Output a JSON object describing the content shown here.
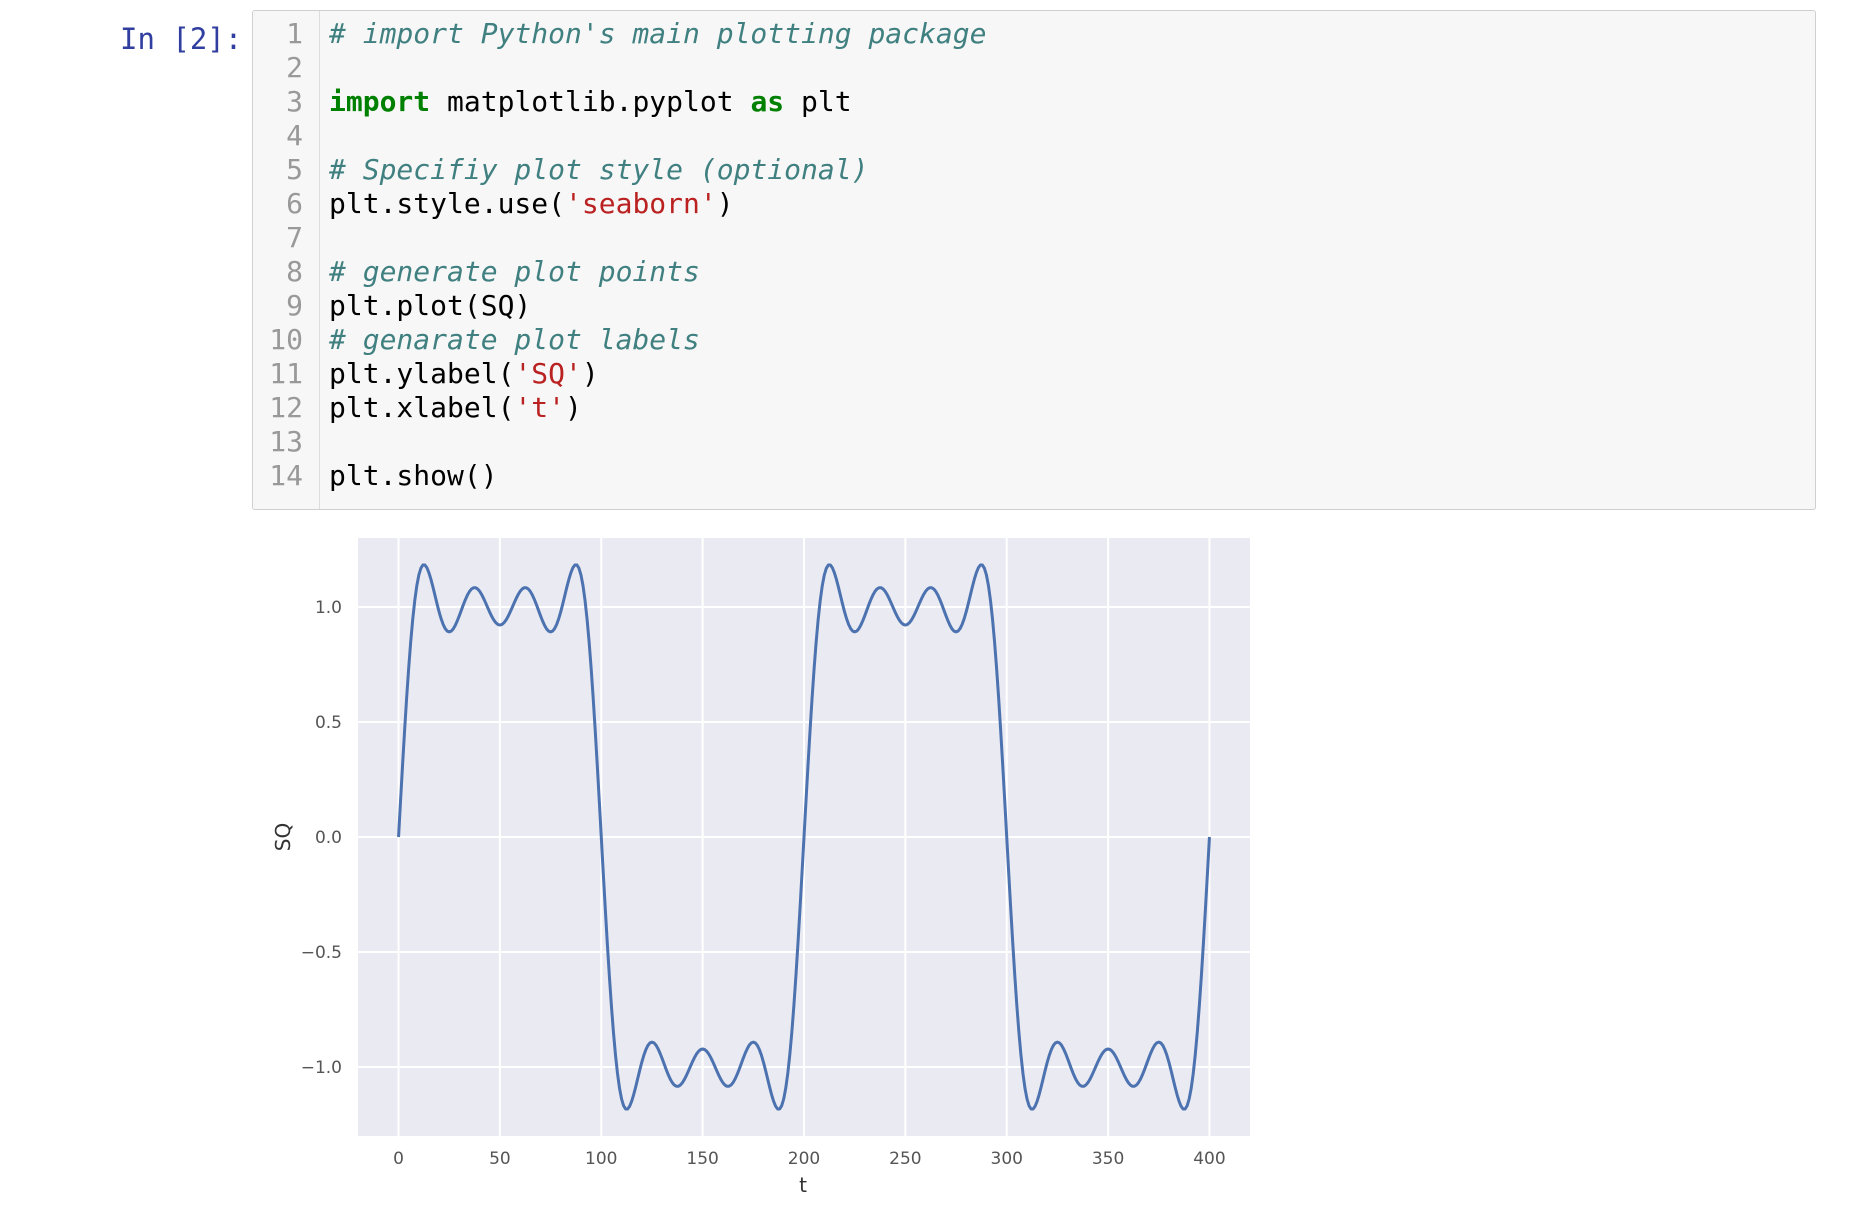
{
  "cell": {
    "prompt": "In [2]:",
    "lines": [
      {
        "n": "1",
        "tokens": [
          {
            "t": "comment",
            "v": "# import Python's main plotting package"
          }
        ]
      },
      {
        "n": "2",
        "tokens": []
      },
      {
        "n": "3",
        "tokens": [
          {
            "t": "keyword",
            "v": "import"
          },
          {
            "t": "plain",
            "v": " matplotlib.pyplot "
          },
          {
            "t": "keyword",
            "v": "as"
          },
          {
            "t": "plain",
            "v": " plt"
          }
        ]
      },
      {
        "n": "4",
        "tokens": []
      },
      {
        "n": "5",
        "tokens": [
          {
            "t": "comment",
            "v": "# Specifiy plot style (optional)"
          }
        ]
      },
      {
        "n": "6",
        "tokens": [
          {
            "t": "plain",
            "v": "plt.style.use("
          },
          {
            "t": "string",
            "v": "'seaborn'"
          },
          {
            "t": "plain",
            "v": ")"
          }
        ]
      },
      {
        "n": "7",
        "tokens": []
      },
      {
        "n": "8",
        "tokens": [
          {
            "t": "comment",
            "v": "# generate plot points"
          }
        ]
      },
      {
        "n": "9",
        "tokens": [
          {
            "t": "plain",
            "v": "plt.plot(SQ)"
          }
        ]
      },
      {
        "n": "10",
        "tokens": [
          {
            "t": "comment",
            "v": "# genarate plot labels"
          }
        ]
      },
      {
        "n": "11",
        "tokens": [
          {
            "t": "plain",
            "v": "plt.ylabel("
          },
          {
            "t": "string",
            "v": "'SQ'"
          },
          {
            "t": "plain",
            "v": ")"
          }
        ]
      },
      {
        "n": "12",
        "tokens": [
          {
            "t": "plain",
            "v": "plt.xlabel("
          },
          {
            "t": "string",
            "v": "'t'"
          },
          {
            "t": "plain",
            "v": ")"
          }
        ]
      },
      {
        "n": "13",
        "tokens": []
      },
      {
        "n": "14",
        "tokens": [
          {
            "t": "plain",
            "v": "plt.show()"
          }
        ]
      }
    ]
  },
  "chart_data": {
    "type": "line",
    "title": "",
    "xlabel": "t",
    "ylabel": "SQ",
    "xlim": [
      -20,
      420
    ],
    "ylim": [
      -1.3,
      1.3
    ],
    "xticks": [
      0,
      50,
      100,
      150,
      200,
      250,
      300,
      350,
      400
    ],
    "yticks": [
      -1.0,
      -0.5,
      0.0,
      0.5,
      1.0
    ],
    "xtick_labels": [
      "0",
      "50",
      "100",
      "150",
      "200",
      "250",
      "300",
      "350",
      "400"
    ],
    "ytick_labels": [
      "−1.0",
      "−0.5",
      "0.0",
      "0.5",
      "1.0"
    ],
    "grid": true,
    "style": "seaborn",
    "colors": {
      "line": "#4c72b0",
      "axes_bg": "#eaeaf2",
      "grid": "#ffffff",
      "tick": "#555555"
    },
    "series": [
      {
        "function": "fourier square wave, harmonics 1,3,5,7",
        "period": 200,
        "n_points": 401,
        "x_start": 0,
        "x_end": 400,
        "harmonics": [
          1,
          3,
          5,
          7
        ]
      }
    ]
  }
}
